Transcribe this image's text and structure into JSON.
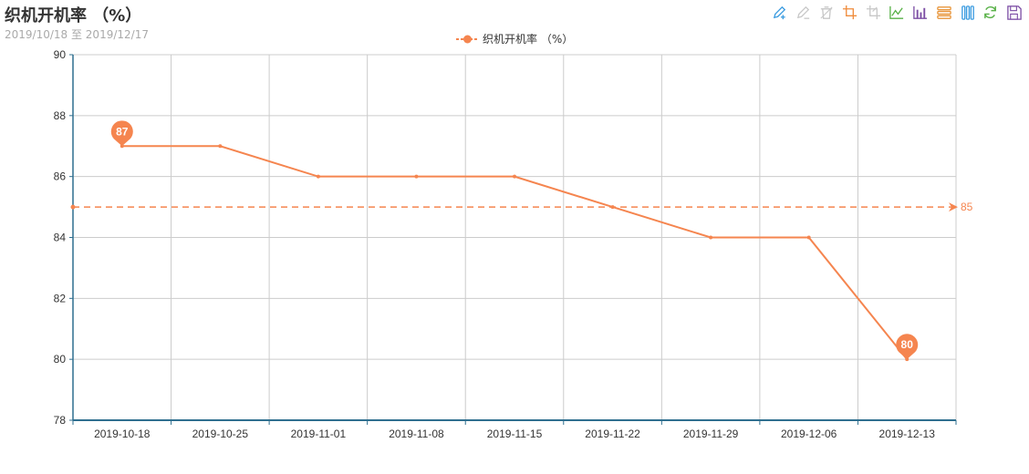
{
  "title": "织机开机率 （%）",
  "subtitle": "2019/10/18 至 2019/12/17",
  "toolbox": [
    {
      "name": "pen-plus-icon",
      "color": "#3a9be0"
    },
    {
      "name": "eraser-icon",
      "color": "#c8c8c8"
    },
    {
      "name": "trash-icon",
      "color": "#c8c8c8"
    },
    {
      "name": "zoom-select-icon",
      "color": "#f08c3c"
    },
    {
      "name": "zoom-reset-icon",
      "color": "#c8c8c8"
    },
    {
      "name": "line-chart-icon",
      "color": "#58b147"
    },
    {
      "name": "bar-chart-icon",
      "color": "#7d4fa5"
    },
    {
      "name": "stack-icon",
      "color": "#e8953a"
    },
    {
      "name": "tiled-icon",
      "color": "#3a9be0"
    },
    {
      "name": "refresh-icon",
      "color": "#58b147"
    },
    {
      "name": "save-icon",
      "color": "#7d4fa5"
    }
  ],
  "chart_data": {
    "type": "line",
    "categories": [
      "2019-10-18",
      "2019-10-25",
      "2019-11-01",
      "2019-11-08",
      "2019-11-15",
      "2019-11-22",
      "2019-11-29",
      "2019-12-06",
      "2019-12-13"
    ],
    "series": [
      {
        "name": "织机开机率 （%）",
        "values": [
          87,
          87,
          86,
          86,
          86,
          85,
          84,
          84,
          80
        ],
        "color": "#f5854f"
      }
    ],
    "ylim": [
      78,
      90
    ],
    "yticks": [
      78,
      80,
      82,
      84,
      86,
      88,
      90
    ],
    "mark_points": [
      {
        "label": "87",
        "index": 0,
        "value": 87
      },
      {
        "label": "80",
        "index": 8,
        "value": 80
      }
    ],
    "mark_line": {
      "value": 85,
      "label": "85"
    },
    "grid": true,
    "legend_position": "top-center",
    "axis_color": "#2f6f8f"
  }
}
